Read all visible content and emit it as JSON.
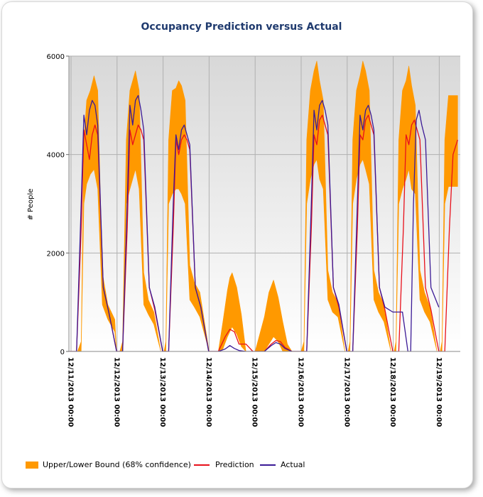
{
  "chart_data": {
    "type": "area",
    "title": "Occupancy Prediction versus Actual",
    "ylabel": "# People",
    "xlabel": "",
    "ylim": [
      0,
      6000
    ],
    "yticks": [
      "6000",
      "4000",
      "2000",
      "0"
    ],
    "grid": true,
    "legend_position": "bottom",
    "x_tick_labels": [
      "12/11/2013 00:00",
      "12/12/2013 00:00",
      "12/13/2013 00:00",
      "12/14/2013 00:00",
      "12/15/2013 00:00",
      "12/16/2013 00:00",
      "12/17/2013 00:00",
      "12/18/2013 00:00",
      "12/19/2013 00:00"
    ],
    "x_unit": "days since 12/11/2013 00:00",
    "series": [
      {
        "name": "Upper/Lower Bound (68% confidence)",
        "kind": "band",
        "color": "#ff9900",
        "x": [
          -0.2,
          0.05,
          0.14,
          0.22,
          0.28,
          0.34,
          0.42,
          0.5,
          0.58,
          0.68,
          0.8,
          0.95,
          0.99,
          1.02,
          1.06,
          1.12,
          1.2,
          1.28,
          1.34,
          1.4,
          1.48,
          1.58,
          1.68,
          1.8,
          1.95,
          1.99,
          2.02,
          2.06,
          2.12,
          2.2,
          2.28,
          2.34,
          2.4,
          2.48,
          2.58,
          2.68,
          2.8,
          3.0,
          3.2,
          3.3,
          3.4,
          3.45,
          3.5,
          3.6,
          3.7,
          3.8,
          3.95,
          4.0,
          4.2,
          4.3,
          4.4,
          4.5,
          4.6,
          4.7,
          4.8,
          4.95,
          5.0,
          5.06,
          5.12,
          5.2,
          5.28,
          5.34,
          5.4,
          5.48,
          5.58,
          5.68,
          5.8,
          5.95,
          5.99,
          6.02,
          6.06,
          6.12,
          6.2,
          6.28,
          6.34,
          6.4,
          6.48,
          6.58,
          6.68,
          6.8,
          6.95,
          6.99,
          7.02,
          7.06,
          7.12,
          7.2,
          7.28,
          7.34,
          7.4,
          7.48,
          7.58,
          7.68,
          7.8,
          7.95,
          7.99,
          8.02,
          8.06,
          8.12,
          8.2,
          8.3,
          8.4
        ],
        "upper": [
          0,
          0,
          0,
          200,
          4300,
          5100,
          5300,
          5600,
          5300,
          1600,
          950,
          650,
          0,
          0,
          0,
          200,
          4300,
          5300,
          5500,
          5700,
          5300,
          1600,
          1050,
          800,
          0,
          0,
          0,
          200,
          4300,
          5300,
          5350,
          5500,
          5400,
          5100,
          1750,
          1400,
          1200,
          0,
          0,
          600,
          1250,
          1500,
          1600,
          1300,
          750,
          0,
          0,
          0,
          700,
          1200,
          1450,
          1100,
          600,
          150,
          0,
          0,
          0,
          200,
          4300,
          5300,
          5700,
          5900,
          5500,
          5100,
          1650,
          1200,
          1000,
          0,
          0,
          0,
          200,
          4300,
          5300,
          5600,
          5900,
          5700,
          5300,
          1650,
          1200,
          950,
          0,
          0,
          0,
          200,
          4300,
          5300,
          5500,
          5800,
          5400,
          5000,
          1650,
          1200,
          900,
          0,
          0,
          0,
          200,
          4300,
          5200,
          5200,
          5200
        ],
        "lower": [
          0,
          0,
          0,
          0,
          3000,
          3400,
          3600,
          3700,
          3300,
          950,
          650,
          400,
          0,
          0,
          0,
          0,
          3000,
          3300,
          3500,
          3700,
          3300,
          950,
          750,
          550,
          0,
          0,
          0,
          0,
          3000,
          3200,
          3300,
          3300,
          3200,
          3000,
          1050,
          900,
          700,
          0,
          0,
          50,
          300,
          400,
          500,
          350,
          100,
          0,
          0,
          0,
          0,
          150,
          300,
          200,
          0,
          0,
          0,
          0,
          0,
          0,
          3000,
          3500,
          3800,
          3900,
          3500,
          3300,
          1050,
          800,
          700,
          0,
          0,
          0,
          0,
          3000,
          3500,
          3800,
          3900,
          3700,
          3400,
          1050,
          800,
          600,
          0,
          0,
          0,
          0,
          3000,
          3300,
          3500,
          3700,
          3300,
          3200,
          1050,
          800,
          600,
          0,
          0,
          0,
          0,
          3000,
          3350,
          3350,
          3350
        ]
      },
      {
        "name": "Prediction",
        "kind": "line",
        "color": "#e8101b",
        "x": [
          -0.2,
          0.12,
          0.22,
          0.28,
          0.34,
          0.4,
          0.46,
          0.52,
          0.58,
          0.7,
          0.82,
          0.99,
          1.02,
          1.12,
          1.22,
          1.28,
          1.34,
          1.4,
          1.46,
          1.52,
          1.58,
          1.7,
          1.82,
          1.99,
          2.02,
          2.12,
          2.22,
          2.28,
          2.34,
          2.4,
          2.46,
          2.52,
          2.58,
          2.7,
          2.82,
          2.99,
          3.2,
          3.35,
          3.45,
          3.55,
          3.65,
          3.8,
          3.95,
          4.2,
          4.35,
          4.45,
          4.55,
          4.65,
          4.8,
          4.99,
          5.12,
          5.22,
          5.28,
          5.34,
          5.4,
          5.46,
          5.52,
          5.58,
          5.7,
          5.82,
          5.99,
          6.12,
          6.22,
          6.28,
          6.34,
          6.4,
          6.46,
          6.52,
          6.58,
          6.7,
          6.82,
          6.99,
          7.12,
          7.22,
          7.28,
          7.34,
          7.4,
          7.46,
          7.52,
          7.58,
          7.7,
          7.82,
          7.99,
          8.12,
          8.22,
          8.3,
          8.4
        ],
        "values": [
          0,
          0,
          2500,
          4500,
          4200,
          3900,
          4400,
          4600,
          4400,
          1300,
          800,
          0,
          0,
          0,
          2500,
          4500,
          4200,
          4400,
          4600,
          4500,
          4300,
          1300,
          850,
          0,
          0,
          0,
          2500,
          4300,
          4000,
          4300,
          4400,
          4300,
          4100,
          1300,
          900,
          0,
          0,
          300,
          450,
          400,
          150,
          150,
          0,
          0,
          150,
          220,
          200,
          80,
          0,
          0,
          0,
          2500,
          4400,
          4200,
          4700,
          4800,
          4600,
          4400,
          1300,
          900,
          0,
          0,
          2500,
          4400,
          4300,
          4700,
          4800,
          4600,
          4400,
          1300,
          850,
          0,
          0,
          2500,
          4400,
          4200,
          4600,
          4700,
          4500,
          4300,
          1300,
          850,
          0,
          0,
          2500,
          4000,
          4300
        ]
      },
      {
        "name": "Actual",
        "kind": "line",
        "color": "#3b1a96",
        "x": [
          -0.2,
          0.12,
          0.22,
          0.28,
          0.34,
          0.4,
          0.46,
          0.52,
          0.58,
          0.7,
          0.82,
          0.99,
          1.02,
          1.12,
          1.22,
          1.28,
          1.34,
          1.4,
          1.46,
          1.52,
          1.58,
          1.7,
          1.82,
          1.99,
          2.02,
          2.12,
          2.22,
          2.28,
          2.34,
          2.4,
          2.46,
          2.52,
          2.58,
          2.7,
          2.82,
          2.99,
          3.2,
          3.35,
          3.45,
          3.55,
          3.65,
          3.8,
          3.95,
          4.2,
          4.35,
          4.45,
          4.55,
          4.65,
          4.8,
          4.99,
          5.12,
          5.22,
          5.28,
          5.34,
          5.4,
          5.46,
          5.52,
          5.58,
          5.7,
          5.82,
          5.99,
          6.12,
          6.22,
          6.28,
          6.34,
          6.4,
          6.46,
          6.52,
          6.58,
          6.7,
          6.82,
          6.99,
          7.02,
          7.2,
          7.32,
          7.38,
          7.44,
          7.5,
          7.56,
          7.62,
          7.7,
          7.82,
          7.99
        ],
        "values": [
          0,
          0,
          3000,
          4800,
          4400,
          4900,
          5100,
          5000,
          4600,
          1300,
          800,
          0,
          0,
          0,
          3000,
          5000,
          4600,
          5100,
          5200,
          4900,
          4500,
          1300,
          900,
          0,
          0,
          0,
          3000,
          4400,
          4100,
          4500,
          4600,
          4400,
          4200,
          1300,
          900,
          0,
          0,
          50,
          120,
          60,
          20,
          0,
          0,
          0,
          120,
          180,
          150,
          60,
          0,
          0,
          0,
          3000,
          4900,
          4500,
          5000,
          5100,
          4900,
          4600,
          1300,
          950,
          0,
          0,
          3000,
          4800,
          4500,
          4900,
          5000,
          4800,
          4500,
          1300,
          900,
          800,
          800,
          800,
          0,
          0,
          3000,
          4700,
          4900,
          4600,
          4300,
          1300,
          900
        ]
      }
    ]
  },
  "legend": {
    "band_label": "Upper/Lower Bound (68% confidence)",
    "prediction_label": "Prediction",
    "actual_label": "Actual"
  }
}
